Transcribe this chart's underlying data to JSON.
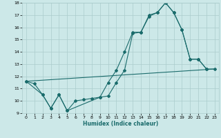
{
  "xlabel": "Humidex (Indice chaleur)",
  "bg_color": "#cce8e8",
  "grid_color": "#aacccc",
  "line_color": "#1a6b6b",
  "xlim": [
    -0.5,
    23.5
  ],
  "ylim": [
    9,
    18
  ],
  "xticks": [
    0,
    1,
    2,
    3,
    4,
    5,
    6,
    7,
    8,
    9,
    10,
    11,
    12,
    13,
    14,
    15,
    16,
    17,
    18,
    19,
    20,
    21,
    22,
    23
  ],
  "yticks": [
    9,
    10,
    11,
    12,
    13,
    14,
    15,
    16,
    17,
    18
  ],
  "line1_x": [
    0,
    1,
    2,
    3,
    4,
    5,
    6,
    7,
    8,
    9,
    10,
    11,
    12,
    13,
    14,
    15,
    16,
    17,
    18,
    19,
    20,
    21,
    22,
    23
  ],
  "line1_y": [
    11.6,
    11.4,
    10.5,
    9.4,
    10.5,
    9.2,
    10.0,
    10.1,
    10.2,
    10.3,
    11.5,
    12.5,
    14.0,
    15.6,
    15.6,
    16.9,
    17.2,
    18.0,
    17.2,
    15.8,
    13.4,
    13.4,
    12.6,
    12.6
  ],
  "line2_x": [
    0,
    2,
    3,
    4,
    5,
    9,
    10,
    11,
    12,
    13,
    14,
    15,
    16,
    17,
    18,
    19,
    20,
    21,
    22
  ],
  "line2_y": [
    11.6,
    10.5,
    9.4,
    10.5,
    9.2,
    10.3,
    10.4,
    11.5,
    12.5,
    15.5,
    15.6,
    17.0,
    17.2,
    18.0,
    17.2,
    15.8,
    13.4,
    13.4,
    12.6
  ],
  "line3_x": [
    0,
    23
  ],
  "line3_y": [
    11.6,
    12.6
  ]
}
